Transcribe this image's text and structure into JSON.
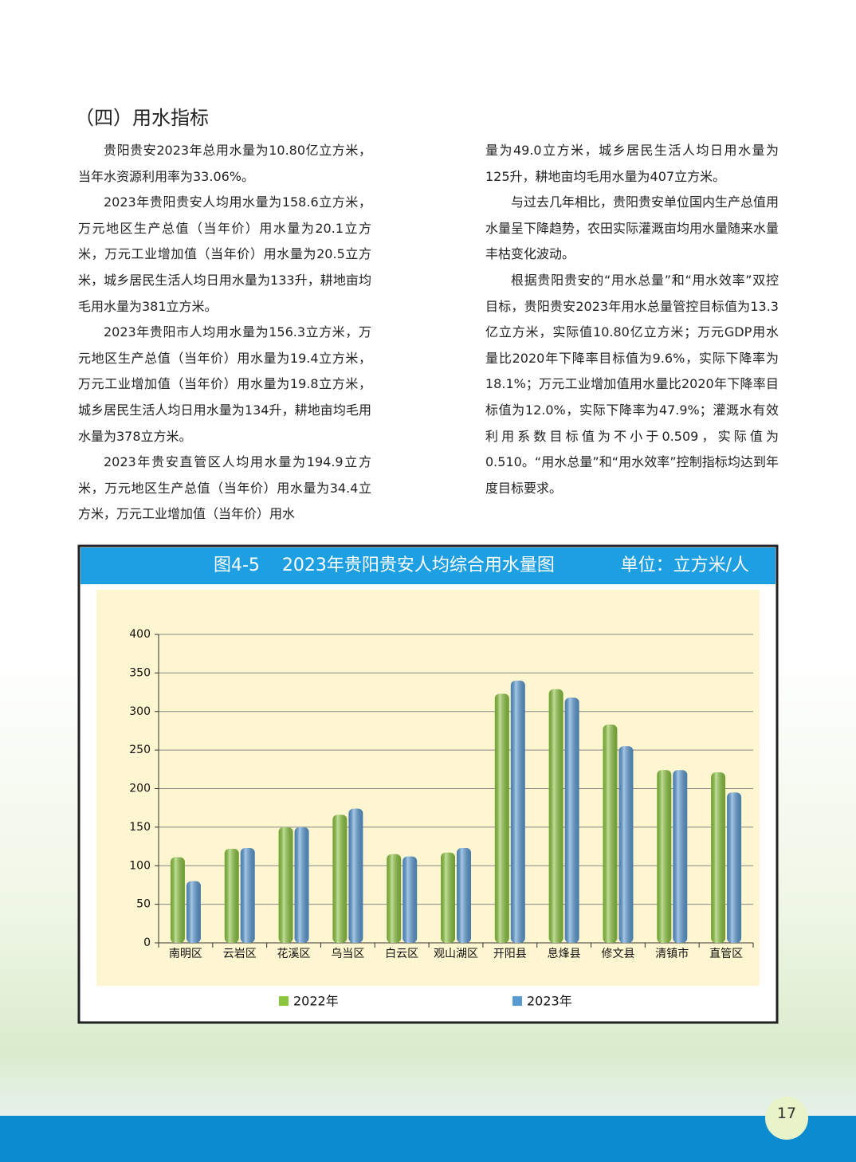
{
  "section_title": "（四）用水指标",
  "left_paragraphs": [
    "贵阳贵安2023年总用水量为10.80亿立方米，当年水资源利用率为33.06%。",
    "2023年贵阳贵安人均用水量为158.6立方米，万元地区生产总值（当年价）用水量为20.1立方米，万元工业增加值（当年价）用水量为20.5立方米，城乡居民生活人均日用水量为133升，耕地亩均毛用水量为381立方米。",
    "2023年贵阳市人均用水量为156.3立方米，万元地区生产总值（当年价）用水量为19.4立方米，万元工业增加值（当年价）用水量为19.8立方米，城乡居民生活人均日用水量为134升，耕地亩均毛用水量为378立方米。",
    "2023年贵安直管区人均用水量为194.9立方米，万元地区生产总值（当年价）用水量为34.4立方米，万元工业增加值（当年价）用水"
  ],
  "right_continuation": "量为49.0立方米，城乡居民生活人均日用水量为125升，耕地亩均毛用水量为407立方米。",
  "right_paragraphs": [
    "与过去几年相比，贵阳贵安单位国内生产总值用水量呈下降趋势，农田实际灌溉亩均用水量随来水量丰枯变化波动。",
    "根据贵阳贵安的“用水总量”和“用水效率”双控目标，贵阳贵安2023年用水总量管控目标值为13.3亿立方米，实际值10.80亿立方米；万元GDP用水量比2020年下降率目标值为9.6%，实际下降率为18.1%；万元工业增加值用水量比2020年下降率目标值为12.0%，实际下降率为47.9%；灌溉水有效利用系数目标值为不小于0.509，实际值为0.510。“用水总量”和“用水效率”控制指标均达到年度目标要求。"
  ],
  "chart_data": {
    "type": "bar",
    "title": "图4-5    2023年贵阳贵安人均综合用水量图",
    "unit": "单位：立方米/人",
    "categories": [
      "南明区",
      "云岩区",
      "花溪区",
      "乌当区",
      "白云区",
      "观山湖区",
      "开阳县",
      "息烽县",
      "修文县",
      "清镇市",
      "直管区"
    ],
    "series": [
      {
        "name": "2022年",
        "color": "#8cc63f",
        "values": [
          111,
          122,
          150,
          166,
          115,
          117,
          323,
          329,
          283,
          224,
          221
        ]
      },
      {
        "name": "2023年",
        "color": "#5b9bd5",
        "values": [
          80,
          123,
          150,
          174,
          112,
          123,
          340,
          318,
          255,
          224,
          195
        ]
      }
    ],
    "ylim": [
      0,
      400
    ],
    "yticks": [
      0,
      50,
      100,
      150,
      200,
      250,
      300,
      350,
      400
    ],
    "grid": true
  },
  "page_number": "17"
}
